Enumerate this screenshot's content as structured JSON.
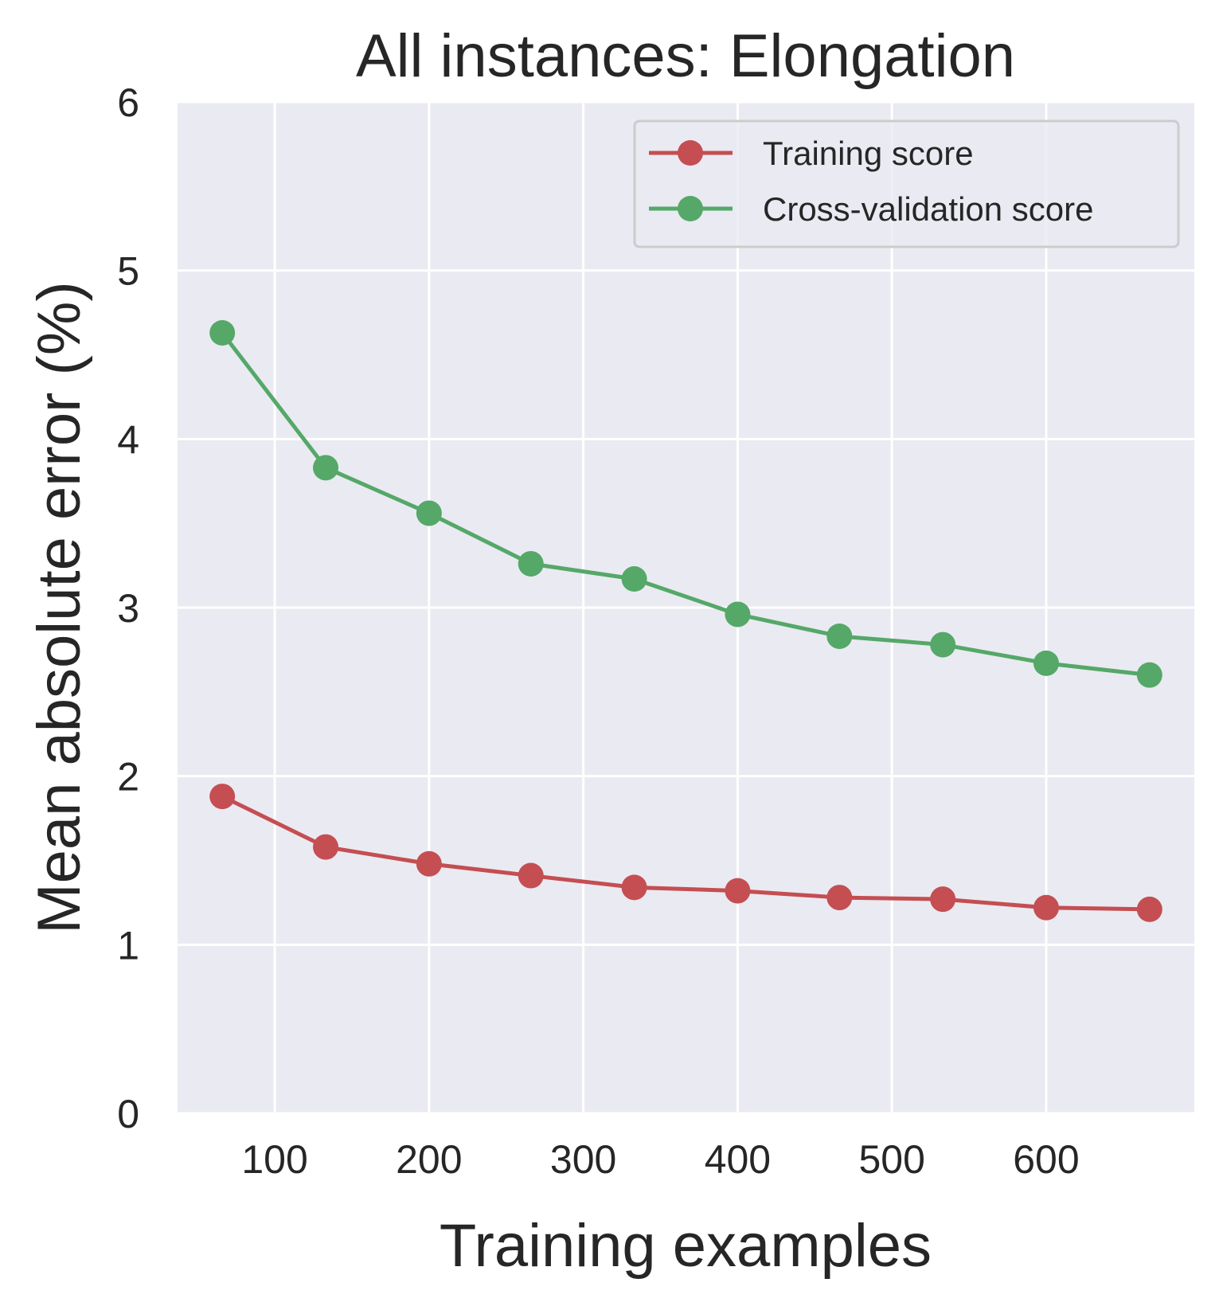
{
  "chart_data": {
    "type": "line",
    "title": "All instances: Elongation",
    "xlabel": "Training examples",
    "ylabel": "Mean absolute error (%)",
    "xlim": [
      37,
      696
    ],
    "ylim": [
      0,
      6
    ],
    "xticks": [
      100,
      200,
      300,
      400,
      500,
      600
    ],
    "yticks": [
      0,
      1,
      2,
      3,
      4,
      5,
      6
    ],
    "grid": true,
    "legend_position": "top-right",
    "x": [
      66,
      133,
      200,
      266,
      333,
      400,
      466,
      533,
      600,
      667
    ],
    "series": [
      {
        "name": "Training score",
        "color": "#c44e52",
        "values": [
          1.88,
          1.58,
          1.48,
          1.41,
          1.34,
          1.32,
          1.28,
          1.27,
          1.22,
          1.21
        ]
      },
      {
        "name": "Cross-validation score",
        "color": "#55a868",
        "values": [
          4.63,
          3.83,
          3.56,
          3.26,
          3.17,
          2.96,
          2.83,
          2.78,
          2.67,
          2.6
        ]
      }
    ],
    "background_color": "#eaeaf2",
    "grid_color": "#ffffff"
  }
}
